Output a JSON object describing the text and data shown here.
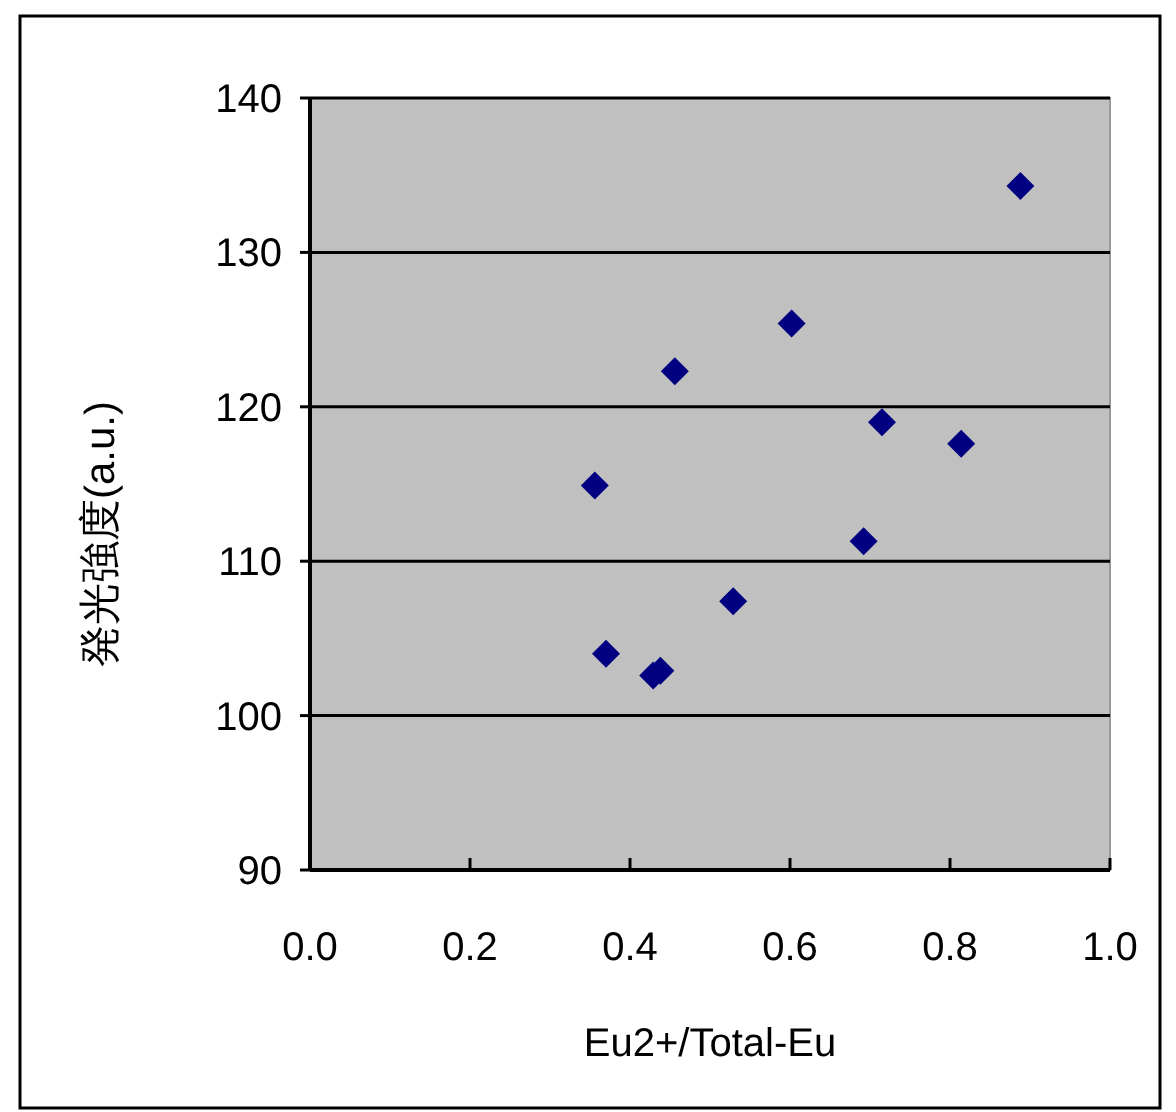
{
  "chart_data": {
    "type": "scatter",
    "xlabel": "Eu2+/Total-Eu",
    "ylabel": "発光強度(a.u.)",
    "x": [
      0.888,
      0.602,
      0.456,
      0.715,
      0.814,
      0.356,
      0.692,
      0.529,
      0.37,
      0.429,
      0.438
    ],
    "series": [
      {
        "color": "#000080",
        "values": [
          134.3,
          125.4,
          122.3,
          119.0,
          117.6,
          114.9,
          111.3,
          107.4,
          104.0,
          102.6,
          102.9
        ]
      }
    ],
    "xlim": [
      0,
      1
    ],
    "ylim": [
      90,
      140
    ],
    "xticks": [
      {
        "value": 0,
        "label": "0.0"
      },
      0.2,
      0.4,
      0.6,
      0.8,
      {
        "value": 1,
        "label": "1.0"
      }
    ],
    "yticks": [
      90,
      100,
      110,
      120,
      130,
      140
    ],
    "grid": "y",
    "marker": "diamond"
  }
}
